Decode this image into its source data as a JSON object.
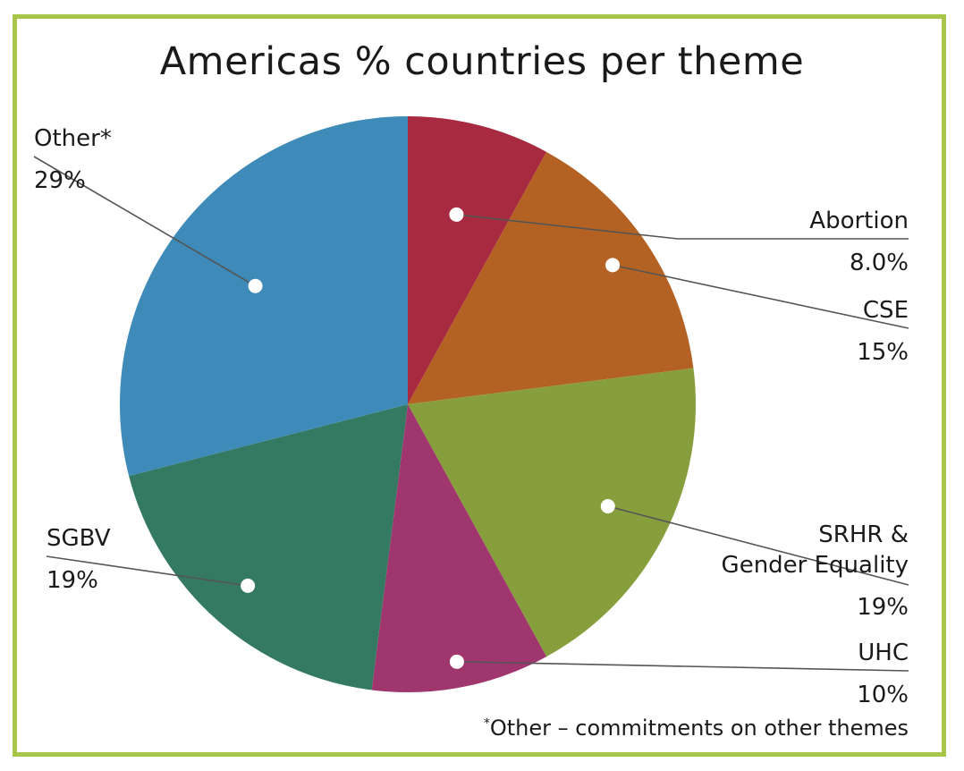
{
  "chart_data": {
    "type": "pie",
    "title": "Americas % countries per theme",
    "slices": [
      {
        "name": "Abortion",
        "value": 8.0,
        "label": "8.0%",
        "color": "#a82a41"
      },
      {
        "name": "CSE",
        "value": 15,
        "label": "15%",
        "color": "#b46224"
      },
      {
        "name": "SRHR & Gender Equality",
        "value": 19,
        "label": "19%",
        "color": "#879e3d"
      },
      {
        "name": "UHC",
        "value": 10,
        "label": "10%",
        "color": "#a0366e"
      },
      {
        "name": "SGBV",
        "value": 19,
        "label": "19%",
        "color": "#347a63"
      },
      {
        "name": "Other*",
        "value": 29,
        "label": "29%",
        "color": "#3e8ab8"
      }
    ],
    "footnote_mark": "*",
    "footnote": "Other – commitments on other themes"
  },
  "colors": {
    "border": "#a7c64a",
    "leader": "#555555",
    "dot": "#ffffff"
  }
}
